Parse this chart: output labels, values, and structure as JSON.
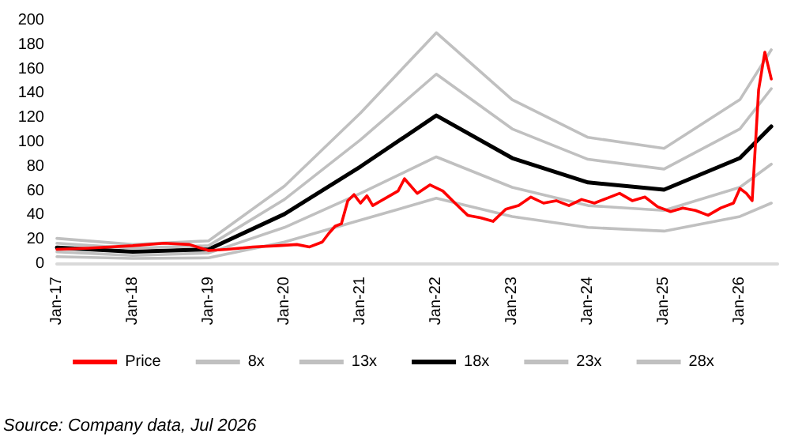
{
  "chart_data": {
    "type": "line",
    "x": [
      "2017-01",
      "2018-01",
      "2019-01",
      "2020-01",
      "2021-01",
      "2022-01",
      "2023-01",
      "2024-01",
      "2025-01",
      "2026-01",
      "2026-06"
    ],
    "series": [
      {
        "name": "Price",
        "color": "#ff0000",
        "x": [
          "2017-01",
          "2017-06",
          "2018-01",
          "2018-06",
          "2018-10",
          "2019-01",
          "2019-04",
          "2019-08",
          "2019-12",
          "2020-03",
          "2020-05",
          "2020-07",
          "2020-08",
          "2020-09",
          "2020-10",
          "2020-11",
          "2020-12",
          "2021-01",
          "2021-02",
          "2021-03",
          "2021-05",
          "2021-07",
          "2021-08",
          "2021-10",
          "2021-12",
          "2022-02",
          "2022-04",
          "2022-06",
          "2022-08",
          "2022-10",
          "2022-12",
          "2023-02",
          "2023-04",
          "2023-06",
          "2023-08",
          "2023-10",
          "2023-12",
          "2024-02",
          "2024-04",
          "2024-06",
          "2024-08",
          "2024-10",
          "2024-12",
          "2025-02",
          "2025-04",
          "2025-06",
          "2025-08",
          "2025-10",
          "2025-12",
          "2026-01",
          "2026-02",
          "2026-03",
          "2026-04",
          "2026-05",
          "2026-06"
        ],
        "values": [
          12,
          13,
          15,
          17,
          16,
          11,
          12,
          14,
          15,
          16,
          14,
          18,
          25,
          31,
          33,
          52,
          57,
          50,
          56,
          48,
          54,
          60,
          70,
          58,
          65,
          60,
          50,
          40,
          38,
          35,
          45,
          48,
          55,
          50,
          52,
          48,
          53,
          50,
          54,
          58,
          52,
          55,
          47,
          43,
          46,
          44,
          40,
          46,
          50,
          62,
          58,
          52,
          143,
          174,
          152
        ]
      },
      {
        "name": "8x",
        "color": "#c0c0c0",
        "values": [
          6,
          4.5,
          5,
          18,
          36,
          54,
          39,
          30,
          27,
          39,
          50
        ]
      },
      {
        "name": "13x",
        "color": "#c0c0c0",
        "values": [
          10,
          7,
          9,
          30,
          58,
          88,
          63,
          48,
          44,
          63,
          82
        ]
      },
      {
        "name": "18x",
        "color": "#000000",
        "values": [
          13.5,
          10,
          12,
          41,
          80,
          122,
          87,
          67,
          61,
          87,
          113
        ]
      },
      {
        "name": "23x",
        "color": "#c0c0c0",
        "values": [
          17,
          13,
          15,
          53,
          102,
          156,
          111,
          86,
          78,
          111,
          144
        ]
      },
      {
        "name": "28x",
        "color": "#c0c0c0",
        "values": [
          21,
          16,
          19,
          64,
          124,
          190,
          135,
          104,
          95,
          135,
          176
        ]
      }
    ],
    "xlim": [
      "2017-01",
      "2026-07"
    ],
    "xticks": [
      {
        "value": "2017-01",
        "label": "Jan-17"
      },
      {
        "value": "2018-01",
        "label": "Jan-18"
      },
      {
        "value": "2019-01",
        "label": "Jan-19"
      },
      {
        "value": "2020-01",
        "label": "Jan-20"
      },
      {
        "value": "2021-01",
        "label": "Jan-21"
      },
      {
        "value": "2022-01",
        "label": "Jan-22"
      },
      {
        "value": "2023-01",
        "label": "Jan-23"
      },
      {
        "value": "2024-01",
        "label": "Jan-24"
      },
      {
        "value": "2025-01",
        "label": "Jan-25"
      },
      {
        "value": "2026-01",
        "label": "Jan-26"
      }
    ],
    "ylim": [
      0,
      200
    ],
    "yticks": [
      0,
      20,
      40,
      60,
      80,
      100,
      120,
      140,
      160,
      180,
      200
    ],
    "grid": false,
    "legend": "bottom",
    "marker": "none",
    "line_style": "solid",
    "annotations": [
      "Source: Company data, Jul 2026"
    ]
  }
}
